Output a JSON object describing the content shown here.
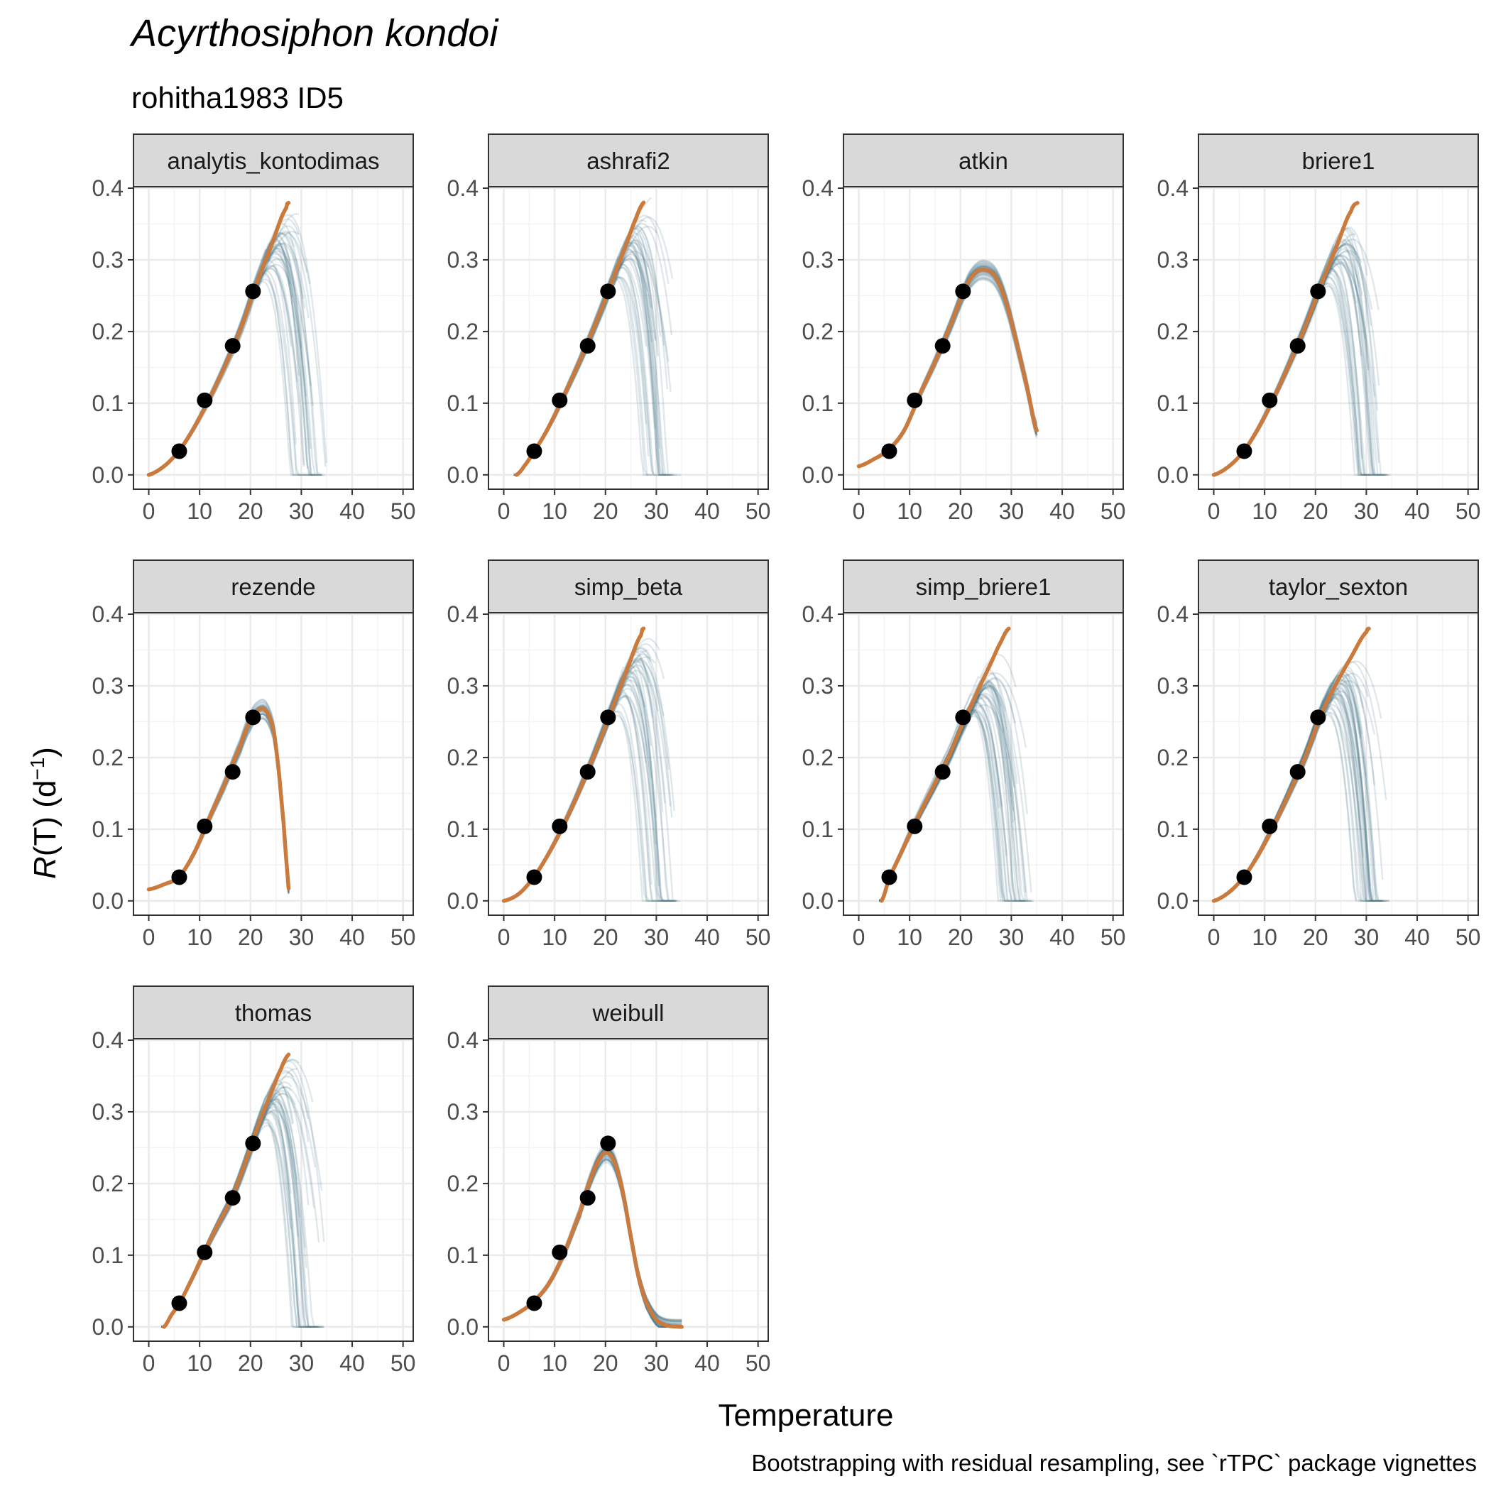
{
  "title": "Acyrthosiphon kondoi",
  "subtitle": "rohitha1983 ID5",
  "caption": "Bootstrapping with residual resampling, see `rTPC` package vignettes",
  "chart_data": {
    "type": "line",
    "xlabel": "Temperature",
    "ylabel": {
      "italic": "R",
      "rest": "(T) (d",
      "sup": "−1",
      "close": ")"
    },
    "xlim": [
      -3,
      52
    ],
    "ylim": [
      -0.02,
      0.402
    ],
    "x_ticks": [
      0,
      10,
      20,
      30,
      40,
      50
    ],
    "y_ticks": [
      0.0,
      0.1,
      0.2,
      0.3,
      0.4
    ],
    "y_tick_labels": [
      "0.0",
      "0.1",
      "0.2",
      "0.3",
      "0.4"
    ],
    "grid": true,
    "colors": {
      "fit": "#C97A3C",
      "bootstrap": "#3F6E82",
      "points": "#000000",
      "strip": "#D9D9D9"
    },
    "points": {
      "x": [
        6,
        11,
        16.5,
        20.5
      ],
      "y": [
        0.033,
        0.104,
        0.18,
        0.256
      ]
    },
    "panels": [
      {
        "model": "analytis_kontodimas",
        "fit": {
          "x": [
            0,
            3,
            6,
            9,
            12,
            15,
            18,
            21,
            24,
            27,
            27.7
          ],
          "y": [
            0.0,
            0.012,
            0.034,
            0.067,
            0.107,
            0.152,
            0.202,
            0.263,
            0.318,
            0.372,
            0.38
          ]
        }
      },
      {
        "model": "ashrafi2",
        "fit": {
          "x": [
            2.5,
            4,
            6,
            8,
            10,
            12,
            14,
            16,
            18,
            20,
            22,
            24,
            26,
            27.5
          ],
          "y": [
            0.0,
            0.012,
            0.033,
            0.056,
            0.083,
            0.113,
            0.144,
            0.176,
            0.21,
            0.246,
            0.283,
            0.32,
            0.358,
            0.38
          ]
        }
      },
      {
        "model": "atkin",
        "fit": {
          "x": [
            0,
            3,
            6,
            9,
            12,
            15,
            18,
            21,
            23,
            25,
            27,
            29,
            31,
            33,
            35
          ],
          "y": [
            0.012,
            0.022,
            0.036,
            0.063,
            0.112,
            0.158,
            0.208,
            0.26,
            0.282,
            0.286,
            0.275,
            0.24,
            0.185,
            0.125,
            0.062
          ]
        }
      },
      {
        "model": "briere1",
        "fit": {
          "x": [
            0,
            3,
            6,
            9,
            12,
            15,
            18,
            21,
            24,
            27,
            28.4
          ],
          "y": [
            0.0,
            0.012,
            0.034,
            0.068,
            0.11,
            0.157,
            0.207,
            0.263,
            0.316,
            0.368,
            0.38
          ]
        }
      },
      {
        "model": "rezende",
        "fit": {
          "x": [
            0,
            3,
            6,
            9,
            12,
            15,
            18,
            20,
            21.5,
            23,
            24.5,
            25.5,
            26.5,
            27.2,
            27.6
          ],
          "y": [
            0.016,
            0.023,
            0.034,
            0.068,
            0.117,
            0.165,
            0.216,
            0.252,
            0.266,
            0.266,
            0.24,
            0.185,
            0.11,
            0.045,
            0.012
          ]
        }
      },
      {
        "model": "simp_beta",
        "fit": {
          "x": [
            0,
            3,
            6,
            9,
            12,
            15,
            18,
            21,
            24,
            27,
            27.5
          ],
          "y": [
            0.0,
            0.01,
            0.034,
            0.068,
            0.109,
            0.156,
            0.207,
            0.262,
            0.318,
            0.371,
            0.38
          ]
        }
      },
      {
        "model": "simp_briere1",
        "fit": {
          "x": [
            4.5,
            6,
            8,
            10,
            12,
            14,
            16,
            18,
            20,
            22,
            24,
            26,
            28,
            29.5
          ],
          "y": [
            0.0,
            0.032,
            0.062,
            0.093,
            0.122,
            0.15,
            0.178,
            0.206,
            0.24,
            0.271,
            0.302,
            0.332,
            0.362,
            0.38
          ]
        }
      },
      {
        "model": "taylor_sexton",
        "fit": {
          "x": [
            0,
            3,
            6,
            9,
            12,
            15,
            18,
            21,
            24,
            27,
            30,
            30.6
          ],
          "y": [
            0.0,
            0.012,
            0.034,
            0.067,
            0.108,
            0.153,
            0.201,
            0.258,
            0.302,
            0.34,
            0.375,
            0.38
          ]
        }
      },
      {
        "model": "thomas",
        "fit": {
          "x": [
            3,
            4.5,
            6,
            8,
            10,
            12,
            14,
            16,
            18,
            20,
            22,
            24,
            26,
            27.5
          ],
          "y": [
            0.0,
            0.017,
            0.033,
            0.06,
            0.09,
            0.12,
            0.148,
            0.175,
            0.21,
            0.25,
            0.29,
            0.325,
            0.36,
            0.38
          ]
        }
      },
      {
        "model": "weibull",
        "fit": {
          "x": [
            0,
            3,
            6,
            9,
            12,
            15,
            17,
            19,
            20.5,
            22,
            23.5,
            25,
            26.5,
            28,
            30,
            32,
            35
          ],
          "y": [
            0.01,
            0.02,
            0.036,
            0.062,
            0.105,
            0.16,
            0.205,
            0.236,
            0.243,
            0.226,
            0.185,
            0.125,
            0.07,
            0.034,
            0.01,
            0.002,
            0.0
          ]
        }
      }
    ]
  }
}
